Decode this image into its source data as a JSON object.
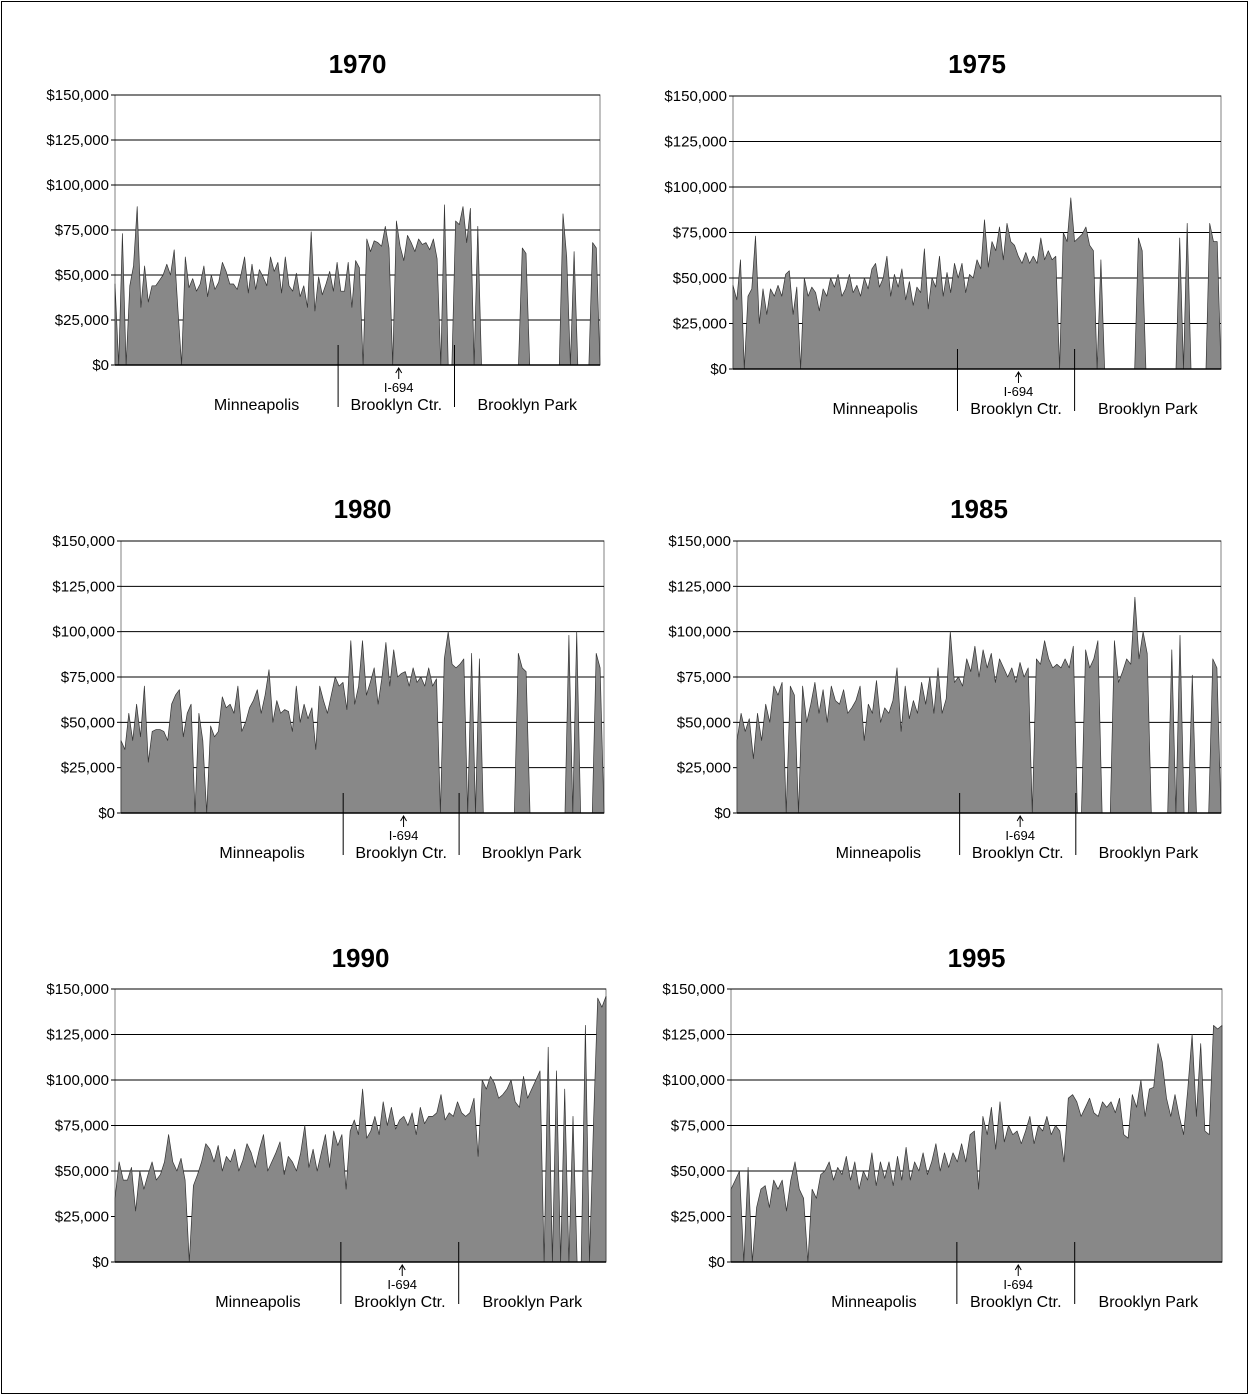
{
  "chart_data": [
    {
      "type": "area",
      "title": "1970",
      "ylim": [
        0,
        150000
      ],
      "ytick_labels": [
        "$0",
        "$25,000",
        "$50,000",
        "$75,000",
        "$100,000",
        "$125,000",
        "$150,000"
      ],
      "grid": true,
      "segments": [
        "Minneapolis",
        "Brooklyn Ctr.",
        "Brooklyn Park"
      ],
      "boundary_positions": [
        0.46,
        0.7
      ],
      "marker": {
        "label": "I-694",
        "position": 0.585
      },
      "fill_color": "#888888",
      "values": [
        45000,
        0,
        73000,
        0,
        44000,
        55000,
        88000,
        32000,
        55000,
        35000,
        44000,
        44000,
        47000,
        50000,
        56000,
        50000,
        64000,
        31000,
        0,
        60000,
        43000,
        48000,
        41000,
        45000,
        55000,
        38000,
        50000,
        42000,
        46000,
        57000,
        52000,
        45000,
        45000,
        42000,
        50000,
        60000,
        40000,
        56000,
        42000,
        53000,
        49000,
        44000,
        60000,
        52000,
        57000,
        40000,
        60000,
        44000,
        41000,
        51000,
        38000,
        44000,
        32000,
        74000,
        30000,
        49000,
        39000,
        45000,
        52000,
        41000,
        57000,
        41000,
        41000,
        57000,
        32000,
        58000,
        54000,
        0,
        70000,
        63000,
        69000,
        68000,
        66000,
        77000,
        65000,
        0,
        80000,
        66000,
        58000,
        72000,
        68000,
        63000,
        70000,
        67000,
        68000,
        64000,
        70000,
        59000,
        0,
        89000,
        0,
        0,
        80000,
        78000,
        88000,
        68000,
        87000,
        0,
        77000,
        0,
        0,
        0,
        0,
        0,
        0,
        0,
        0,
        0,
        0,
        0,
        65000,
        62000,
        0,
        0,
        0,
        0,
        0,
        0,
        0,
        0,
        0,
        84000,
        60000,
        0,
        63000,
        0,
        0,
        0,
        0,
        68000,
        65000,
        0
      ],
      "xtick_labels": [],
      "xlabel": "",
      "ylabel": ""
    },
    {
      "type": "area",
      "title": "1975",
      "ylim": [
        0,
        150000
      ],
      "ytick_labels": [
        "$0",
        "$25,000",
        "$50,000",
        "$75,000",
        "$100,000",
        "$125,000",
        "$150,000"
      ],
      "grid": true,
      "segments": [
        "Minneapolis",
        "Brooklyn Ctr.",
        "Brooklyn Park"
      ],
      "boundary_positions": [
        0.46,
        0.7
      ],
      "marker": {
        "label": "I-694",
        "position": 0.585
      },
      "fill_color": "#888888",
      "values": [
        46000,
        38000,
        60000,
        0,
        40000,
        44000,
        73000,
        25000,
        44000,
        30000,
        44000,
        40000,
        46000,
        40000,
        52000,
        54000,
        30000,
        45000,
        0,
        50000,
        40000,
        45000,
        42000,
        32000,
        44000,
        40000,
        50000,
        45000,
        52000,
        40000,
        44000,
        52000,
        42000,
        46000,
        40000,
        50000,
        44000,
        55000,
        58000,
        45000,
        50000,
        62000,
        40000,
        52000,
        45000,
        55000,
        38000,
        48000,
        35000,
        45000,
        42000,
        66000,
        33000,
        50000,
        45000,
        62000,
        40000,
        53000,
        42000,
        58000,
        50000,
        58000,
        42000,
        52000,
        50000,
        60000,
        55000,
        82000,
        56000,
        70000,
        65000,
        78000,
        60000,
        80000,
        70000,
        68000,
        62000,
        58000,
        64000,
        58000,
        62000,
        58000,
        72000,
        60000,
        65000,
        60000,
        62000,
        0,
        75000,
        70000,
        94000,
        70000,
        72000,
        74000,
        78000,
        68000,
        65000,
        0,
        60000,
        0,
        0,
        0,
        0,
        0,
        0,
        0,
        0,
        0,
        72000,
        65000,
        0,
        0,
        0,
        0,
        0,
        0,
        0,
        0,
        0,
        72000,
        0,
        80000,
        0,
        0,
        0,
        0,
        0,
        80000,
        70000,
        70000,
        0
      ],
      "xtick_labels": [],
      "xlabel": "",
      "ylabel": ""
    },
    {
      "type": "area",
      "title": "1980",
      "ylim": [
        0,
        150000
      ],
      "ytick_labels": [
        "$0",
        "$25,000",
        "$50,000",
        "$75,000",
        "$100,000",
        "$125,000",
        "$150,000"
      ],
      "grid": true,
      "segments": [
        "Minneapolis",
        "Brooklyn Ctr.",
        "Brooklyn Park"
      ],
      "boundary_positions": [
        0.46,
        0.7
      ],
      "marker": {
        "label": "I-694",
        "position": 0.585
      },
      "fill_color": "#888888",
      "values": [
        40000,
        35000,
        55000,
        40000,
        60000,
        42000,
        70000,
        28000,
        45000,
        46000,
        46000,
        45000,
        40000,
        60000,
        65000,
        68000,
        42000,
        55000,
        60000,
        0,
        55000,
        40000,
        0,
        48000,
        42000,
        45000,
        64000,
        58000,
        60000,
        55000,
        70000,
        45000,
        50000,
        58000,
        62000,
        68000,
        55000,
        65000,
        79000,
        50000,
        62000,
        55000,
        57000,
        56000,
        45000,
        70000,
        50000,
        60000,
        52000,
        58000,
        35000,
        70000,
        62000,
        55000,
        65000,
        75000,
        70000,
        72000,
        57000,
        95000,
        60000,
        70000,
        95000,
        65000,
        72000,
        80000,
        60000,
        75000,
        94000,
        70000,
        90000,
        75000,
        77000,
        78000,
        70000,
        80000,
        72000,
        75000,
        70000,
        80000,
        70000,
        74000,
        0,
        85000,
        100000,
        82000,
        80000,
        82000,
        85000,
        0,
        88000,
        0,
        85000,
        0,
        0,
        0,
        0,
        0,
        0,
        0,
        0,
        0,
        88000,
        80000,
        78000,
        0,
        0,
        0,
        0,
        0,
        0,
        0,
        0,
        0,
        0,
        98000,
        0,
        100000,
        0,
        0,
        0,
        0,
        88000,
        80000,
        0
      ],
      "xtick_labels": [],
      "xlabel": "",
      "ylabel": ""
    },
    {
      "type": "area",
      "title": "1985",
      "ylim": [
        0,
        150000
      ],
      "ytick_labels": [
        "$0",
        "$25,000",
        "$50,000",
        "$75,000",
        "$100,000",
        "$125,000",
        "$150,000"
      ],
      "grid": true,
      "segments": [
        "Minneapolis",
        "Brooklyn Ctr.",
        "Brooklyn Park"
      ],
      "boundary_positions": [
        0.46,
        0.7
      ],
      "marker": {
        "label": "I-694",
        "position": 0.585
      },
      "fill_color": "#888888",
      "values": [
        40000,
        55000,
        45000,
        52000,
        30000,
        55000,
        40000,
        60000,
        50000,
        70000,
        65000,
        72000,
        0,
        70000,
        65000,
        0,
        70000,
        50000,
        60000,
        72000,
        55000,
        68000,
        50000,
        70000,
        62000,
        60000,
        68000,
        55000,
        58000,
        62000,
        70000,
        40000,
        60000,
        55000,
        73000,
        50000,
        58000,
        55000,
        62000,
        80000,
        45000,
        70000,
        52000,
        62000,
        55000,
        72000,
        60000,
        75000,
        55000,
        80000,
        55000,
        63000,
        100000,
        72000,
        75000,
        70000,
        85000,
        78000,
        92000,
        75000,
        90000,
        80000,
        88000,
        72000,
        85000,
        80000,
        75000,
        80000,
        72000,
        83000,
        75000,
        80000,
        0,
        85000,
        82000,
        95000,
        85000,
        80000,
        82000,
        80000,
        85000,
        80000,
        92000,
        0,
        0,
        90000,
        80000,
        85000,
        95000,
        0,
        0,
        0,
        95000,
        72000,
        78000,
        85000,
        82000,
        119000,
        85000,
        100000,
        88000,
        0,
        0,
        0,
        0,
        0,
        90000,
        0,
        98000,
        0,
        0,
        76000,
        0,
        0,
        0,
        0,
        85000,
        80000,
        0
      ],
      "xtick_labels": [],
      "xlabel": "",
      "ylabel": ""
    },
    {
      "type": "area",
      "title": "1990",
      "ylim": [
        0,
        150000
      ],
      "ytick_labels": [
        "$0",
        "$25,000",
        "$50,000",
        "$75,000",
        "$100,000",
        "$125,000",
        "$150,000"
      ],
      "grid": true,
      "segments": [
        "Minneapolis",
        "Brooklyn Ctr.",
        "Brooklyn Park"
      ],
      "boundary_positions": [
        0.46,
        0.7
      ],
      "marker": {
        "label": "I-694",
        "position": 0.585
      },
      "fill_color": "#888888",
      "values": [
        35000,
        55000,
        45000,
        45000,
        52000,
        28000,
        50000,
        40000,
        48000,
        55000,
        45000,
        48000,
        55000,
        70000,
        55000,
        50000,
        57000,
        45000,
        0,
        42000,
        48000,
        55000,
        65000,
        62000,
        55000,
        64000,
        50000,
        58000,
        55000,
        62000,
        50000,
        56000,
        65000,
        60000,
        52000,
        62000,
        70000,
        50000,
        55000,
        60000,
        66000,
        48000,
        58000,
        55000,
        50000,
        60000,
        75000,
        52000,
        62000,
        50000,
        60000,
        70000,
        52000,
        72000,
        64000,
        70000,
        40000,
        72000,
        78000,
        70000,
        95000,
        68000,
        72000,
        80000,
        70000,
        88000,
        75000,
        85000,
        73000,
        78000,
        80000,
        75000,
        82000,
        70000,
        85000,
        76000,
        80000,
        80000,
        82000,
        92000,
        78000,
        82000,
        80000,
        88000,
        82000,
        80000,
        82000,
        90000,
        58000,
        100000,
        95000,
        102000,
        98000,
        90000,
        92000,
        95000,
        100000,
        88000,
        85000,
        102000,
        90000,
        95000,
        100000,
        105000,
        0,
        118000,
        0,
        105000,
        0,
        95000,
        0,
        80000,
        0,
        0,
        130000,
        0,
        78000,
        145000,
        140000,
        146000
      ],
      "xtick_labels": [],
      "xlabel": "",
      "ylabel": ""
    },
    {
      "type": "area",
      "title": "1995",
      "ylim": [
        0,
        150000
      ],
      "ytick_labels": [
        "$0",
        "$25,000",
        "$50,000",
        "$75,000",
        "$100,000",
        "$125,000",
        "$150,000"
      ],
      "grid": true,
      "segments": [
        "Minneapolis",
        "Brooklyn Ctr.",
        "Brooklyn Park"
      ],
      "boundary_positions": [
        0.46,
        0.7
      ],
      "marker": {
        "label": "I-694",
        "position": 0.585
      },
      "fill_color": "#888888",
      "values": [
        40000,
        45000,
        50000,
        0,
        52000,
        0,
        30000,
        40000,
        42000,
        30000,
        45000,
        40000,
        45000,
        28000,
        45000,
        55000,
        40000,
        35000,
        0,
        40000,
        35000,
        48000,
        50000,
        55000,
        45000,
        52000,
        48000,
        58000,
        45000,
        55000,
        40000,
        50000,
        45000,
        60000,
        42000,
        55000,
        46000,
        55000,
        42000,
        58000,
        45000,
        63000,
        45000,
        55000,
        50000,
        60000,
        48000,
        55000,
        65000,
        50000,
        60000,
        52000,
        60000,
        55000,
        65000,
        55000,
        70000,
        72000,
        40000,
        80000,
        70000,
        85000,
        62000,
        88000,
        66000,
        75000,
        70000,
        72000,
        65000,
        72000,
        80000,
        65000,
        75000,
        72000,
        80000,
        70000,
        75000,
        72000,
        55000,
        90000,
        92000,
        88000,
        80000,
        85000,
        90000,
        82000,
        80000,
        88000,
        85000,
        88000,
        82000,
        90000,
        70000,
        68000,
        92000,
        85000,
        100000,
        80000,
        95000,
        96000,
        120000,
        110000,
        90000,
        80000,
        92000,
        80000,
        70000,
        95000,
        125000,
        80000,
        120000,
        72000,
        70000,
        130000,
        128000,
        130000
      ],
      "xtick_labels": [],
      "xlabel": "",
      "ylabel": ""
    }
  ]
}
